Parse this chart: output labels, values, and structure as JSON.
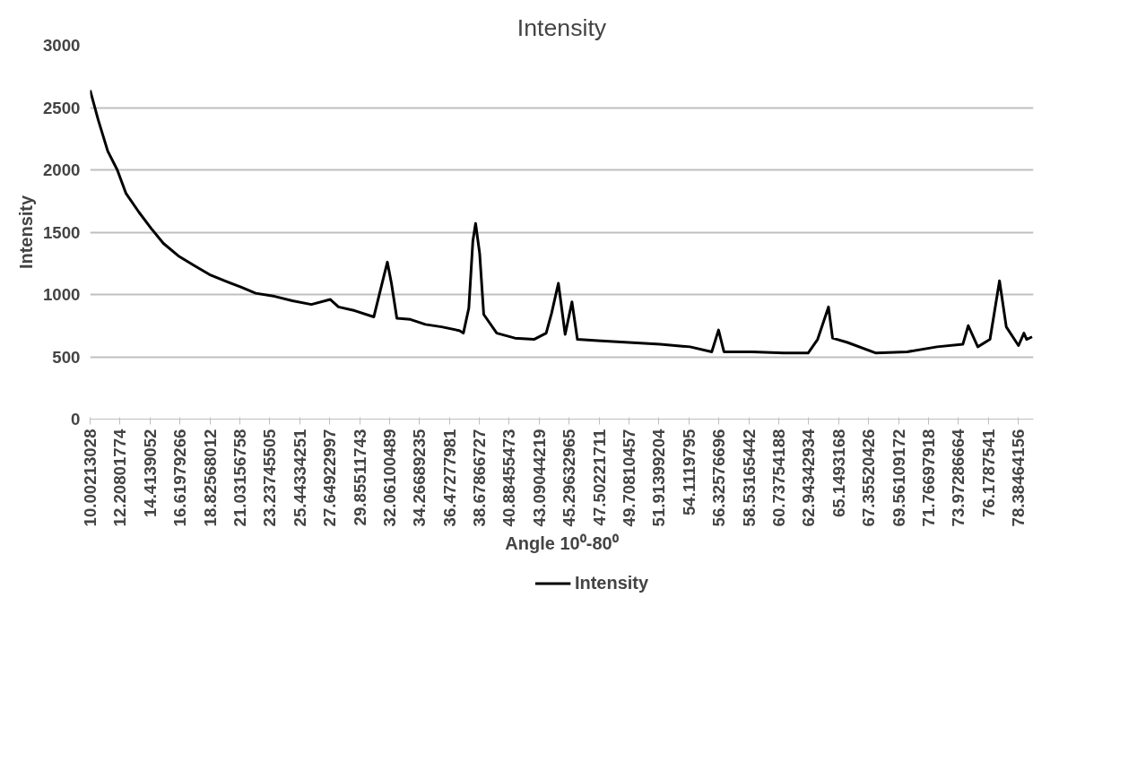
{
  "chart_data": {
    "type": "line",
    "title": "Intensity",
    "xlabel": "Angle 10⁰-80⁰",
    "ylabel": "Intensity",
    "x": [
      10.0,
      10.6,
      11.3,
      12.0,
      12.65,
      13.6,
      14.5,
      15.4,
      16.5,
      17.7,
      18.8,
      19.9,
      21.1,
      22.2,
      23.6,
      24.9,
      26.3,
      27.7,
      28.3,
      29.5,
      30.9,
      31.4,
      31.9,
      32.2,
      32.6,
      33.6,
      34.7,
      35.9,
      37.2,
      37.5,
      37.9,
      38.2,
      38.4,
      38.7,
      39.0,
      39.96,
      41.3,
      42.7,
      43.6,
      44.0,
      44.5,
      45.0,
      45.5,
      45.9,
      47.4,
      49.7,
      52.0,
      54.2,
      55.8,
      56.3,
      56.7,
      58.8,
      61.1,
      62.9,
      63.6,
      64.4,
      64.7,
      65.8,
      67.9,
      70.2,
      72.4,
      74.3,
      74.7,
      75.4,
      76.3,
      77.0,
      77.5,
      78.4,
      78.8,
      79.0,
      79.4
    ],
    "series": [
      {
        "name": "Intensity",
        "color": "#000000",
        "values": [
          2640,
          2400,
          2150,
          2000,
          1810,
          1660,
          1530,
          1410,
          1310,
          1230,
          1160,
          1110,
          1060,
          1010,
          985,
          950,
          920,
          960,
          900,
          870,
          820,
          1040,
          1260,
          1090,
          810,
          800,
          760,
          740,
          710,
          690,
          890,
          1430,
          1570,
          1330,
          840,
          690,
          650,
          640,
          690,
          850,
          1090,
          680,
          940,
          640,
          630,
          615,
          600,
          580,
          540,
          715,
          540,
          540,
          530,
          530,
          640,
          900,
          650,
          615,
          530,
          540,
          580,
          600,
          750,
          580,
          640,
          1110,
          740,
          590,
          690,
          640,
          660
        ]
      }
    ],
    "xlim": [
      10.0,
      79.5
    ],
    "ylim": [
      0,
      3000
    ],
    "xticks": [
      {
        "value": 10.00213028,
        "label": "10.00213028"
      },
      {
        "value": 12.20801774,
        "label": "12.20801774"
      },
      {
        "value": 14.4139052,
        "label": "14.4139052"
      },
      {
        "value": 16.61979266,
        "label": "16.61979266"
      },
      {
        "value": 18.82568012,
        "label": "18.82568012"
      },
      {
        "value": 21.03156758,
        "label": "21.03156758"
      },
      {
        "value": 23.23745505,
        "label": "23.23745505"
      },
      {
        "value": 25.44334251,
        "label": "25.44334251"
      },
      {
        "value": 27.64922997,
        "label": "27.64922997"
      },
      {
        "value": 29.85511743,
        "label": "29.85511743"
      },
      {
        "value": 32.06100489,
        "label": "32.06100489"
      },
      {
        "value": 34.26689235,
        "label": "34.26689235"
      },
      {
        "value": 36.47277981,
        "label": "36.47277981"
      },
      {
        "value": 38.67866727,
        "label": "38.67866727"
      },
      {
        "value": 40.88455473,
        "label": "40.88455473"
      },
      {
        "value": 43.09044219,
        "label": "43.09044219"
      },
      {
        "value": 45.29632965,
        "label": "45.29632965"
      },
      {
        "value": 47.50221711,
        "label": "47.50221711"
      },
      {
        "value": 49.70810457,
        "label": "49.70810457"
      },
      {
        "value": 51.91399204,
        "label": "51.91399204"
      },
      {
        "value": 54.1119795,
        "label": "54.1119795"
      },
      {
        "value": 56.32576696,
        "label": "56.32576696"
      },
      {
        "value": 58.53165442,
        "label": "58.53165442"
      },
      {
        "value": 60.73754188,
        "label": "60.73754188"
      },
      {
        "value": 62.94342934,
        "label": "62.94342934"
      },
      {
        "value": 65.1493168,
        "label": "65.1493168"
      },
      {
        "value": 67.35520426,
        "label": "67.35520426"
      },
      {
        "value": 69.56109172,
        "label": "69.56109172"
      },
      {
        "value": 71.76697918,
        "label": "71.76697918"
      },
      {
        "value": 73.97286664,
        "label": "73.97286664"
      },
      {
        "value": 76.1787541,
        "label": "76.1787541"
      },
      {
        "value": 78.38464156,
        "label": "78.38464156"
      }
    ],
    "yticks": [
      0,
      500,
      1000,
      1500,
      2000,
      2500,
      3000
    ],
    "grid": "y",
    "legend": "bottom"
  }
}
